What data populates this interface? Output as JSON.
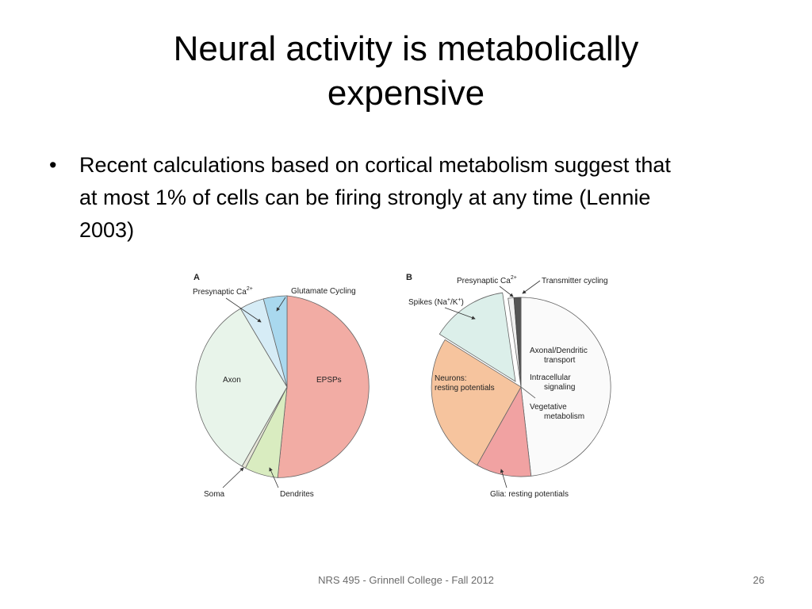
{
  "slide": {
    "title_line1": "Neural activity is metabolically",
    "title_line2": "expensive",
    "bullets": [
      {
        "mark": "•",
        "lines": [
          "Recent calculations based on cortical metabolism suggest that",
          "at most 1% of cells can be firing strongly at any time (Lennie",
          "2003)"
        ]
      }
    ],
    "footer": "NRS 495 - Grinnell College - Fall 2012",
    "page_number": "26"
  },
  "figure": {
    "panel_a": {
      "letter": "A",
      "labels": {
        "presynaptic": "Presynaptic Ca",
        "presynaptic_sup": "2+",
        "glutamate": "Glutamate Cycling",
        "axon": "Axon",
        "epsps": "EPSPs",
        "soma": "Soma",
        "dendrites": "Dendrites"
      }
    },
    "panel_b": {
      "letter": "B",
      "labels": {
        "presynaptic": "Presynaptic Ca",
        "presynaptic_sup": "2+",
        "transmitter": "Transmitter cycling",
        "spikes_pre": "Spikes (Na",
        "spikes_sup1": "+",
        "spikes_mid": "/K",
        "spikes_sup2": "+",
        "spikes_post": ")",
        "axonal1": "Axonal/Dendritic",
        "axonal2": "transport",
        "intracellular1": "Intracellular",
        "intracellular2": "signaling",
        "vegetative1": "Vegetative",
        "vegetative2": "metabolism",
        "neurons1": "Neurons:",
        "neurons2": "resting potentials",
        "glia": "Glia: resting potentials"
      }
    },
    "colors": {
      "epsps": "#f2aca4",
      "dendrites": "#d9ecc0",
      "soma": "#e6e6d8",
      "axon": "#e8f4ea",
      "presynaptic_a": "#d6ecf6",
      "glutamate": "#a9d8ee",
      "vegetative": "#fafafa",
      "glia": "#f1a2a2",
      "neurons": "#f6c49e",
      "spikes": "#dcefea",
      "presynaptic_b": "#f0f0f0",
      "transmitter": "#555555",
      "outline": "#666666"
    }
  }
}
